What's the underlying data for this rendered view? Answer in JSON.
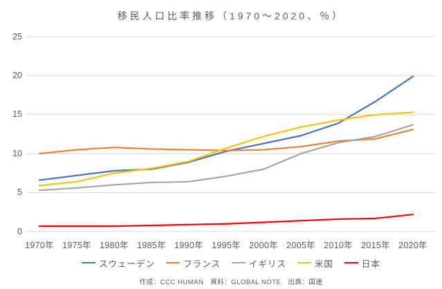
{
  "page": {
    "title": "移民人口比率推移（1970～2020、％）",
    "footer": "作成：CCC HUMAN　資料：GLOBAL NOTE　出典：国連"
  },
  "colors": {
    "background": "#ffffff",
    "gridline": "#d9d9d9",
    "axis_text": "#595959",
    "sweden": "#4472c4",
    "france": "#ed7d31",
    "uk": "#a5a5a5",
    "usa": "#ffc000",
    "japan": "#ff0000"
  },
  "chart_data": {
    "type": "line",
    "title": "移民人口比率推移（1970～2020、％）",
    "xlabel": "",
    "ylabel": "",
    "categories": [
      "1970年",
      "1975年",
      "1980年",
      "1985年",
      "1990年",
      "1995年",
      "2000年",
      "2005年",
      "2010年",
      "2015年",
      "2020年"
    ],
    "series": [
      {
        "id": "sweden",
        "name": "スウェーデン",
        "color": "#4472c4",
        "values": [
          6.6,
          7.2,
          7.8,
          8.0,
          8.9,
          10.3,
          11.3,
          12.3,
          13.9,
          16.7,
          19.9
        ]
      },
      {
        "id": "france",
        "name": "フランス",
        "color": "#ed7d31",
        "values": [
          10.0,
          10.5,
          10.8,
          10.6,
          10.5,
          10.4,
          10.5,
          10.9,
          11.6,
          11.9,
          13.1
        ]
      },
      {
        "id": "uk",
        "name": "イギリス",
        "color": "#a5a5a5",
        "values": [
          5.3,
          5.6,
          6.0,
          6.3,
          6.4,
          7.1,
          8.0,
          10.0,
          11.4,
          12.2,
          13.7
        ]
      },
      {
        "id": "usa",
        "name": "米国",
        "color": "#ffc000",
        "values": [
          5.9,
          6.4,
          7.5,
          8.1,
          9.0,
          10.7,
          12.2,
          13.4,
          14.3,
          15.0,
          15.3
        ]
      },
      {
        "id": "japan",
        "name": "日本",
        "color": "#ff0000",
        "values": [
          0.7,
          0.7,
          0.7,
          0.8,
          0.9,
          1.0,
          1.2,
          1.4,
          1.6,
          1.7,
          2.2
        ]
      }
    ],
    "ylim": [
      0,
      25
    ],
    "yticks": [
      0,
      5,
      10,
      15,
      20,
      25
    ],
    "grid": "horizontal",
    "legend_position": "bottom"
  }
}
